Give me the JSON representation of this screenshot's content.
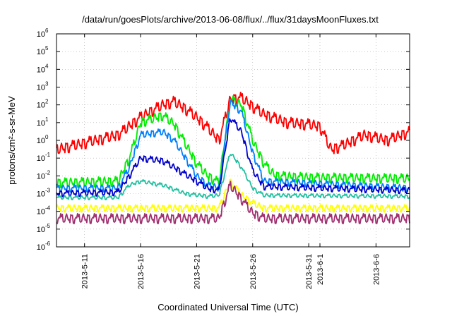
{
  "chart_data": {
    "type": "line",
    "title": "/data/run/goesPlots/archive/2013-06-08/flux/../flux/31daysMoonFluxes.txt",
    "xlabel": "Coordinated Universal Time (UTC)",
    "ylabel": "protons/cm²-s-sr-MeV",
    "yscale": "log",
    "ylim": [
      1e-06,
      1000000.0
    ],
    "xlim": [
      "2013-05-08T12:00",
      "2013-06-09T00:00"
    ],
    "grid": true,
    "legend": "none",
    "y_ticks": [
      {
        "base": "10",
        "exp": "-6",
        "value": 1e-06
      },
      {
        "base": "10",
        "exp": "-5",
        "value": 1e-05
      },
      {
        "base": "10",
        "exp": "-4",
        "value": 0.0001
      },
      {
        "base": "10",
        "exp": "-3",
        "value": 0.001
      },
      {
        "base": "10",
        "exp": "-2",
        "value": 0.01
      },
      {
        "base": "10",
        "exp": "-1",
        "value": 0.1
      },
      {
        "base": "10",
        "exp": "0",
        "value": 1
      },
      {
        "base": "10",
        "exp": "1",
        "value": 10
      },
      {
        "base": "10",
        "exp": "2",
        "value": 100
      },
      {
        "base": "10",
        "exp": "3",
        "value": 1000
      },
      {
        "base": "10",
        "exp": "4",
        "value": 10000
      },
      {
        "base": "10",
        "exp": "5",
        "value": 100000
      },
      {
        "base": "10",
        "exp": "6",
        "value": 1000000
      }
    ],
    "x_ticks": [
      {
        "label": "2013-5-11",
        "date": "2013-05-11"
      },
      {
        "label": "2013-5-16",
        "date": "2013-05-16"
      },
      {
        "label": "2013-5-21",
        "date": "2013-05-21"
      },
      {
        "label": "2013-5-26",
        "date": "2013-05-26"
      },
      {
        "label": "2013-5-31",
        "date": "2013-05-31"
      },
      {
        "label": "2013-6-1",
        "date": "2013-06-01"
      },
      {
        "label": "2013-6-6",
        "date": "2013-06-06"
      }
    ],
    "noise": [
      0.15,
      -0.35,
      0.42,
      -0.1,
      0.28,
      -0.48,
      0.05,
      0.38,
      -0.25,
      0.12,
      -0.4,
      0.3,
      -0.05,
      0.45,
      -0.3,
      0.2,
      -0.15,
      0.35,
      -0.45,
      0.1
    ],
    "series": [
      {
        "color": "#ff0000",
        "noise_amp": 0.35,
        "points": [
          [
            "2013-05-08T12:00",
            0.3
          ],
          [
            "2013-05-10",
            0.5
          ],
          [
            "2013-05-12",
            1
          ],
          [
            "2013-05-14",
            2
          ],
          [
            "2013-05-16",
            20
          ],
          [
            "2013-05-18",
            100
          ],
          [
            "2013-05-19",
            150
          ],
          [
            "2013-05-20",
            60
          ],
          [
            "2013-05-21",
            20
          ],
          [
            "2013-05-22",
            5
          ],
          [
            "2013-05-23",
            1
          ],
          [
            "2013-05-24",
            200
          ],
          [
            "2013-05-25",
            250
          ],
          [
            "2013-05-26",
            80
          ],
          [
            "2013-05-27",
            30
          ],
          [
            "2013-05-29",
            10
          ],
          [
            "2013-05-31",
            8
          ],
          [
            "2013-06-01",
            6
          ],
          [
            "2013-06-02",
            0.3
          ],
          [
            "2013-06-03",
            0.5
          ],
          [
            "2013-06-05",
            2
          ],
          [
            "2013-06-07",
            1
          ],
          [
            "2013-06-09",
            3
          ]
        ]
      },
      {
        "color": "#00ee00",
        "noise_amp": 0.3,
        "points": [
          [
            "2013-05-08T12:00",
            0.004
          ],
          [
            "2013-05-14",
            0.005
          ],
          [
            "2013-05-15",
            0.1
          ],
          [
            "2013-05-16",
            10
          ],
          [
            "2013-05-18",
            25
          ],
          [
            "2013-05-19",
            8
          ],
          [
            "2013-05-21",
            0.05
          ],
          [
            "2013-05-22",
            0.01
          ],
          [
            "2013-05-23",
            0.004
          ],
          [
            "2013-05-24",
            200
          ],
          [
            "2013-05-25",
            100
          ],
          [
            "2013-05-26",
            1
          ],
          [
            "2013-05-27",
            0.05
          ],
          [
            "2013-05-28",
            0.01
          ],
          [
            "2013-05-31",
            0.008
          ],
          [
            "2013-06-09",
            0.007
          ]
        ]
      },
      {
        "color": "#0080ff",
        "noise_amp": 0.22,
        "points": [
          [
            "2013-05-08T12:00",
            0.002
          ],
          [
            "2013-05-14",
            0.002
          ],
          [
            "2013-05-15",
            0.03
          ],
          [
            "2013-05-16",
            2
          ],
          [
            "2013-05-18",
            3
          ],
          [
            "2013-05-19",
            1
          ],
          [
            "2013-05-21",
            0.01
          ],
          [
            "2013-05-22",
            0.003
          ],
          [
            "2013-05-23",
            0.002
          ],
          [
            "2013-05-24",
            150
          ],
          [
            "2013-05-25",
            40
          ],
          [
            "2013-05-26",
            0.2
          ],
          [
            "2013-05-27",
            0.005
          ],
          [
            "2013-06-09",
            0.002
          ]
        ]
      },
      {
        "color": "#0000cc",
        "noise_amp": 0.2,
        "points": [
          [
            "2013-05-08T12:00",
            0.001
          ],
          [
            "2013-05-14",
            0.0012
          ],
          [
            "2013-05-15",
            0.01
          ],
          [
            "2013-05-16",
            0.1
          ],
          [
            "2013-05-18",
            0.07
          ],
          [
            "2013-05-19",
            0.03
          ],
          [
            "2013-05-21",
            0.005
          ],
          [
            "2013-05-22",
            0.002
          ],
          [
            "2013-05-23",
            0.0015
          ],
          [
            "2013-05-24",
            20
          ],
          [
            "2013-05-25",
            3
          ],
          [
            "2013-05-26",
            0.02
          ],
          [
            "2013-05-27",
            0.0025
          ],
          [
            "2013-06-09",
            0.0015
          ]
        ]
      },
      {
        "color": "#20c0a0",
        "noise_amp": 0.12,
        "points": [
          [
            "2013-05-08T12:00",
            0.0006
          ],
          [
            "2013-05-14",
            0.0006
          ],
          [
            "2013-05-15",
            0.003
          ],
          [
            "2013-05-16",
            0.005
          ],
          [
            "2013-05-18",
            0.003
          ],
          [
            "2013-05-20",
            0.001
          ],
          [
            "2013-05-22",
            0.0007
          ],
          [
            "2013-05-23",
            0.0008
          ],
          [
            "2013-05-24",
            0.2
          ],
          [
            "2013-05-25",
            0.03
          ],
          [
            "2013-05-26",
            0.002
          ],
          [
            "2013-05-27",
            0.0008
          ],
          [
            "2013-06-09",
            0.0007
          ]
        ]
      },
      {
        "color": "#ffff00",
        "noise_amp": 0.22,
        "points": [
          [
            "2013-05-08T12:00",
            0.00015
          ],
          [
            "2013-05-22",
            0.00015
          ],
          [
            "2013-05-23",
            0.00015
          ],
          [
            "2013-05-24",
            0.005
          ],
          [
            "2013-05-25",
            0.0008
          ],
          [
            "2013-05-26",
            0.0003
          ],
          [
            "2013-05-27",
            0.00015
          ],
          [
            "2013-06-09",
            0.00015
          ]
        ]
      },
      {
        "color": "#a03070",
        "noise_amp": 0.3,
        "points": [
          [
            "2013-05-08T12:00",
            4e-05
          ],
          [
            "2013-05-22",
            4e-05
          ],
          [
            "2013-05-23",
            4e-05
          ],
          [
            "2013-05-24",
            0.003
          ],
          [
            "2013-05-25",
            0.0005
          ],
          [
            "2013-05-26",
            8e-05
          ],
          [
            "2013-05-27",
            4e-05
          ],
          [
            "2013-06-09",
            4e-05
          ]
        ]
      }
    ]
  }
}
